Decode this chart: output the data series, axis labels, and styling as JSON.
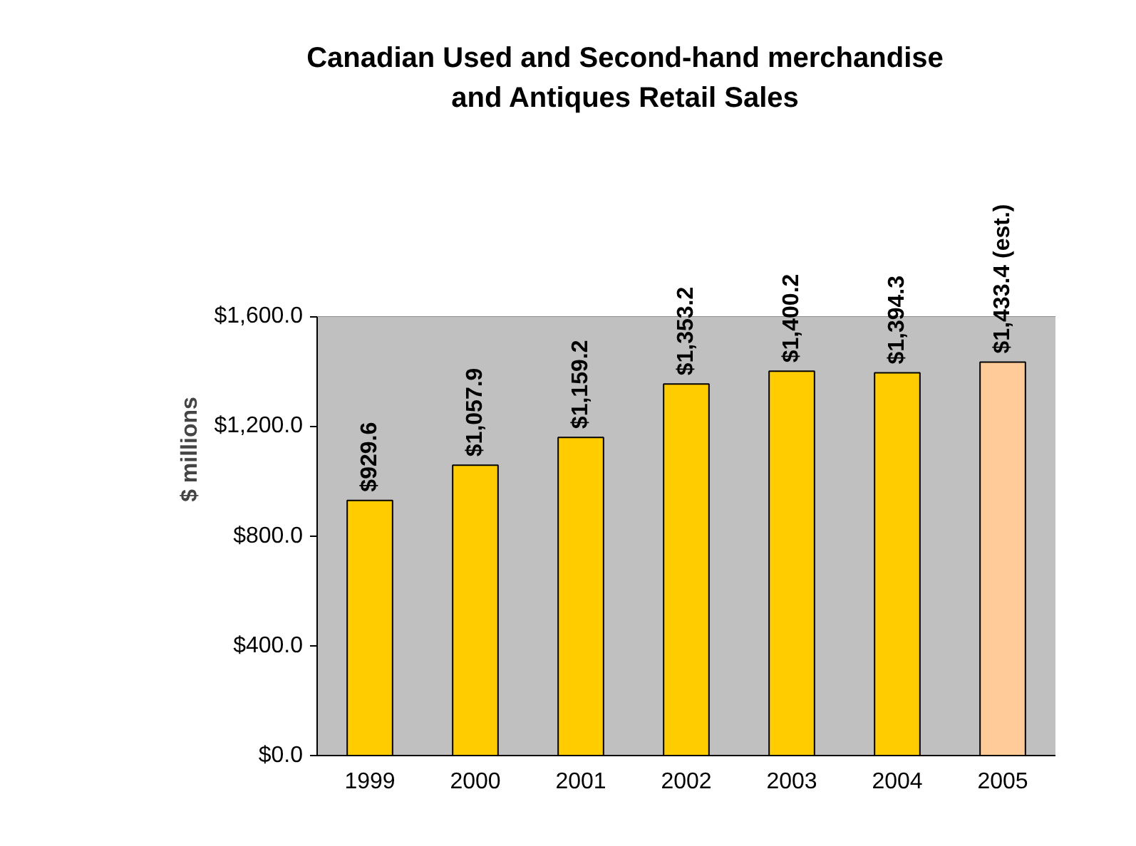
{
  "chart_data": {
    "type": "bar",
    "title": "Canadian Used and Second-hand merchandise\nand Antiques Retail Sales",
    "ylabel": "$ millions",
    "categories": [
      "1999",
      "2000",
      "2001",
      "2002",
      "2003",
      "2004",
      "2005"
    ],
    "values": [
      929.6,
      1057.9,
      1159.2,
      1353.2,
      1400.2,
      1394.3,
      1433.4
    ],
    "colors": [
      "#ffcc00",
      "#ffcc00",
      "#ffcc00",
      "#ffcc00",
      "#ffcc00",
      "#ffcc00",
      "#ffcc99"
    ],
    "value_labels": [
      "$929.6",
      "$1,057.9",
      "$1,159.2",
      "$1,353.2",
      "$1,400.2",
      "$1,394.3",
      "$1,433.4 (est.)"
    ],
    "ylim": [
      0,
      1600
    ],
    "yticks": [
      {
        "value": 0,
        "label": "$0.0"
      },
      {
        "value": 400,
        "label": "$400.0"
      },
      {
        "value": 800,
        "label": "$800.0"
      },
      {
        "value": 1200,
        "label": "$1,200.0"
      },
      {
        "value": 1600,
        "label": "$1,600.0"
      }
    ],
    "grid": "y"
  }
}
